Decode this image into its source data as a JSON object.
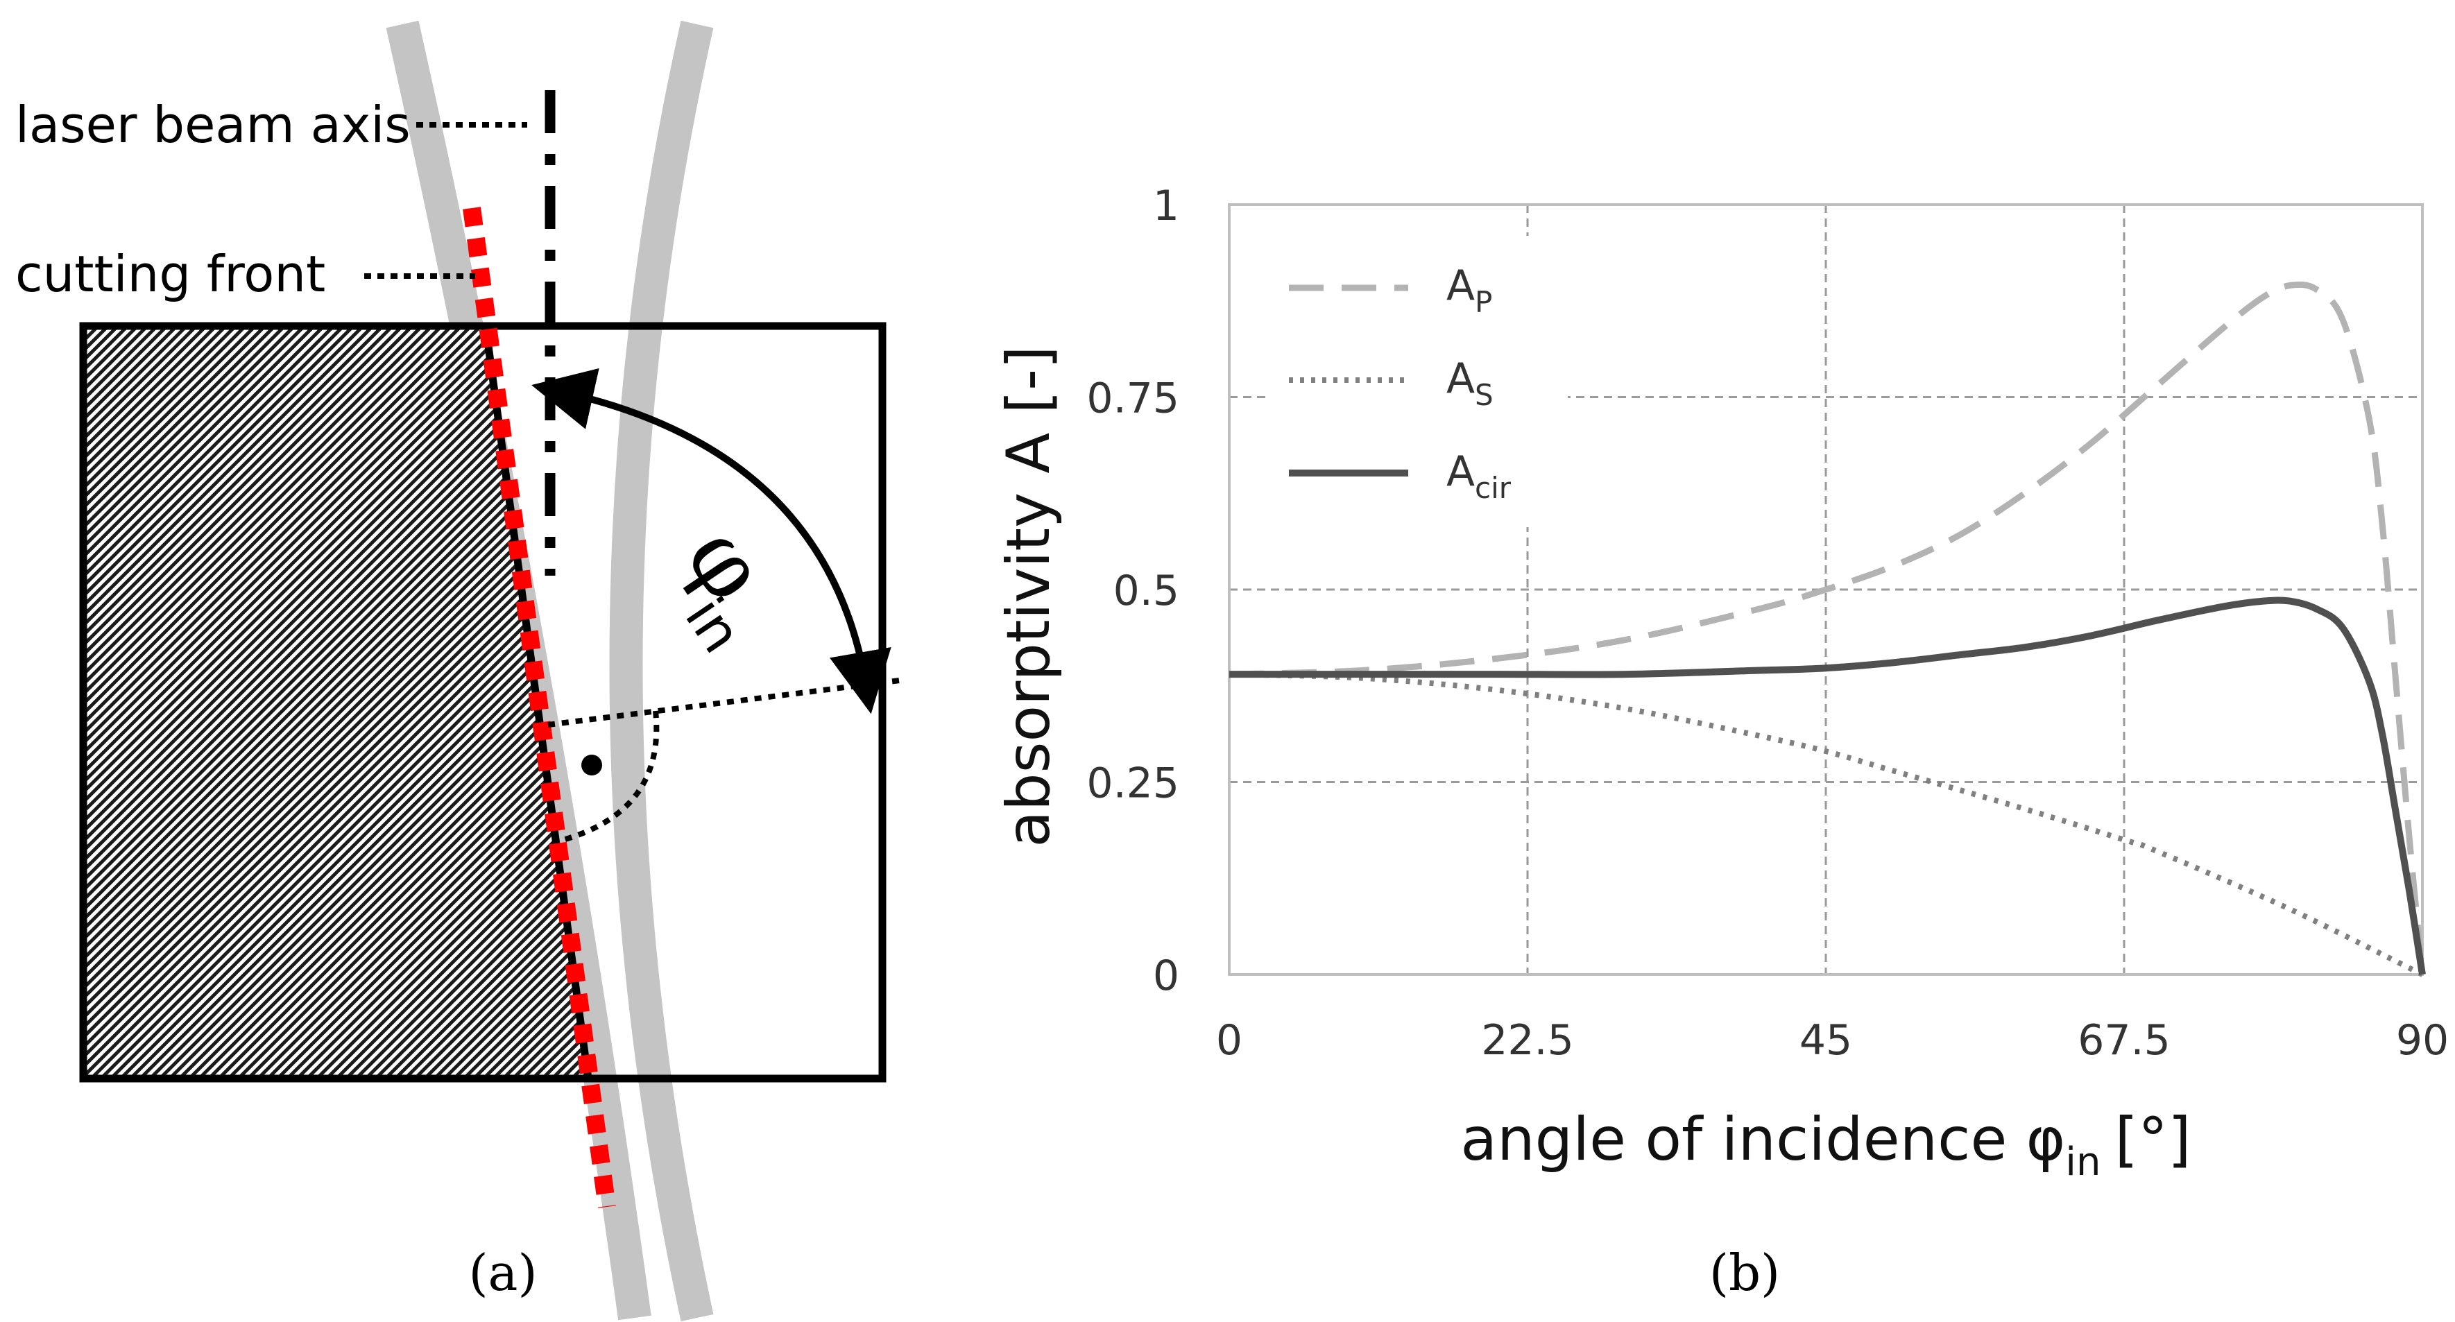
{
  "panel_a": {
    "caption": "(a)",
    "label_beam_axis": "laser beam axis",
    "label_cutting_front": "cutting front",
    "angle_symbol": "φ",
    "angle_subscript": "in",
    "colors": {
      "front": "#ff0000",
      "beam": "#c0c0c0",
      "ink": "#000000"
    }
  },
  "panel_b": {
    "caption": "(b)",
    "chart_data": {
      "type": "line",
      "title": "",
      "xlabel_main": "angle of incidence φ",
      "xlabel_sub": "in",
      "xlabel_unit": "[°]",
      "ylabel": "absorptivity A [-]",
      "xlim": [
        0,
        90
      ],
      "ylim": [
        0,
        1
      ],
      "x_ticks": [
        0,
        22.5,
        45,
        67.5,
        90
      ],
      "x_tick_labels": [
        "0",
        "22.5",
        "45",
        "67.5",
        "90"
      ],
      "y_ticks": [
        0,
        0.25,
        0.5,
        0.75,
        1
      ],
      "y_tick_labels": [
        "0",
        "0.25",
        "0.5",
        "0.75",
        "1"
      ],
      "grid": true,
      "legend_position": "top-left",
      "series": [
        {
          "name": "A",
          "sub": "P",
          "color": "#b3b3b3",
          "style": "dashed",
          "x": [
            0,
            10,
            20,
            30,
            40,
            45,
            50,
            55,
            60,
            65,
            70,
            75,
            78,
            80,
            82,
            84,
            86,
            87,
            88,
            89,
            90
          ],
          "y": [
            0.39,
            0.395,
            0.41,
            0.435,
            0.475,
            0.5,
            0.53,
            0.57,
            0.625,
            0.69,
            0.765,
            0.84,
            0.88,
            0.895,
            0.89,
            0.85,
            0.72,
            0.58,
            0.38,
            0.18,
            0.0
          ]
        },
        {
          "name": "A",
          "sub": "S",
          "color": "#808080",
          "style": "dotted",
          "x": [
            0,
            10,
            20,
            30,
            40,
            45,
            50,
            60,
            67.5,
            70,
            80,
            90
          ],
          "y": [
            0.39,
            0.385,
            0.37,
            0.345,
            0.31,
            0.29,
            0.265,
            0.215,
            0.175,
            0.16,
            0.085,
            0.0
          ]
        },
        {
          "name": "A",
          "sub": "cir",
          "color": "#505050",
          "style": "solid",
          "x": [
            0,
            10,
            20,
            30,
            40,
            45,
            50,
            55,
            60,
            65,
            70,
            75,
            78,
            80,
            82,
            84,
            86,
            87,
            88,
            89,
            90
          ],
          "y": [
            0.39,
            0.39,
            0.39,
            0.39,
            0.395,
            0.398,
            0.405,
            0.415,
            0.425,
            0.44,
            0.46,
            0.478,
            0.485,
            0.485,
            0.475,
            0.45,
            0.38,
            0.31,
            0.21,
            0.11,
            0.0
          ]
        }
      ]
    }
  }
}
